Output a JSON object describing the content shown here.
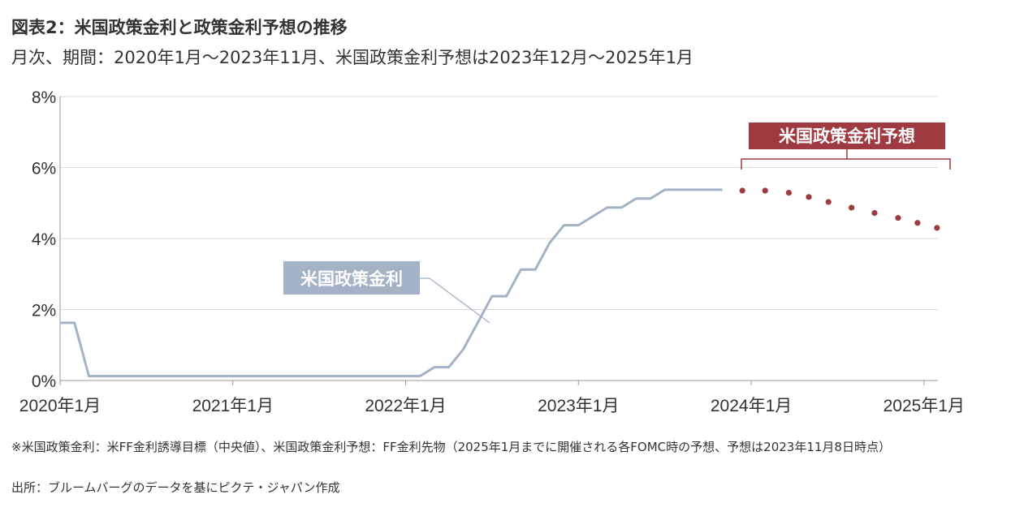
{
  "title": "図表2：米国政策金利と政策金利予想の推移",
  "subtitle": "月次、期間：2020年1月～2023年11月、米国政策金利予想は2023年12月～2025年1月",
  "footnote": "※米国政策金利：米FF金利誘導目標（中央値）、米国政策金利予想：FF金利先物（2025年1月までに開催される各FOMC時の予想、予想は2023年11月8日時点）",
  "source": "出所：ブルームバーグのデータを基にピクテ・ジャパン作成",
  "colors": {
    "actual": "#a3b2c5",
    "forecast": "#9e3a40",
    "grid": "#d9d9d9",
    "axis": "#999999"
  },
  "chart_data": {
    "type": "line",
    "ylim": [
      0,
      8
    ],
    "yticks": [
      0,
      2,
      4,
      6,
      8
    ],
    "ytick_labels": [
      "0%",
      "2%",
      "4%",
      "6%",
      "8%"
    ],
    "xtick_labels": [
      "2020年1月",
      "2021年1月",
      "2022年1月",
      "2023年1月",
      "2024年1月",
      "2025年1月"
    ],
    "grid": true,
    "series": [
      {
        "name": "米国政策金利",
        "style": "line",
        "x": [
          "2020-01",
          "2020-02",
          "2020-03",
          "2020-04",
          "2020-05",
          "2020-06",
          "2020-07",
          "2020-08",
          "2020-09",
          "2020-10",
          "2020-11",
          "2020-12",
          "2021-01",
          "2021-02",
          "2021-03",
          "2021-04",
          "2021-05",
          "2021-06",
          "2021-07",
          "2021-08",
          "2021-09",
          "2021-10",
          "2021-11",
          "2021-12",
          "2022-01",
          "2022-02",
          "2022-03",
          "2022-04",
          "2022-05",
          "2022-06",
          "2022-07",
          "2022-08",
          "2022-09",
          "2022-10",
          "2022-11",
          "2022-12",
          "2023-01",
          "2023-02",
          "2023-03",
          "2023-04",
          "2023-05",
          "2023-06",
          "2023-07",
          "2023-08",
          "2023-09",
          "2023-10",
          "2023-11"
        ],
        "values": [
          1.625,
          1.625,
          0.125,
          0.125,
          0.125,
          0.125,
          0.125,
          0.125,
          0.125,
          0.125,
          0.125,
          0.125,
          0.125,
          0.125,
          0.125,
          0.125,
          0.125,
          0.125,
          0.125,
          0.125,
          0.125,
          0.125,
          0.125,
          0.125,
          0.125,
          0.125,
          0.375,
          0.375,
          0.875,
          1.625,
          2.375,
          2.375,
          3.125,
          3.125,
          3.875,
          4.375,
          4.375,
          4.625,
          4.875,
          4.875,
          5.125,
          5.125,
          5.375,
          5.375,
          5.375,
          5.375,
          5.375
        ]
      },
      {
        "name": "米国政策金利予想",
        "style": "dots",
        "x": [
          "2023-12-13",
          "2024-01-31",
          "2024-03-20",
          "2024-05-01",
          "2024-06-12",
          "2024-07-31",
          "2024-09-18",
          "2024-11-07",
          "2024-12-18",
          "2025-01-29"
        ],
        "values": [
          5.35,
          5.35,
          5.29,
          5.17,
          5.03,
          4.87,
          4.72,
          4.58,
          4.44,
          4.3
        ]
      }
    ],
    "annotations": [
      {
        "text": "米国政策金利",
        "target": "米国政策金利"
      },
      {
        "text": "米国政策金利予想",
        "target": "米国政策金利予想"
      }
    ]
  }
}
